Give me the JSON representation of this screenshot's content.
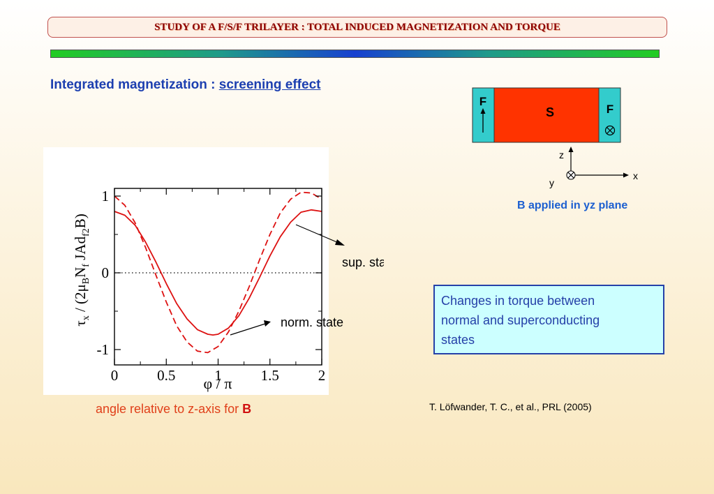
{
  "slide": {
    "title": "STUDY OF A F/S/F TRILAYER : TOTAL INDUCED MAGNETIZATION AND TORQUE",
    "heading_prefix": "Integrated magnetization : ",
    "heading_link": "screening effect",
    "caption_text": "angle relative to z-axis for ",
    "caption_bold": "B",
    "reference": "T. Löfwander, T. C., et al., PRL (2005)",
    "torque_box": [
      "Changes in torque between",
      "normal and superconducting",
      "states"
    ],
    "b_applied_label": "B applied in yz plane"
  },
  "trilayer": {
    "left_layer": "F",
    "middle_layer": "S",
    "right_layer": "F",
    "left_color": "#33cccc",
    "middle_color": "#ff3300",
    "right_color": "#33cccc"
  },
  "axes_diagram": {
    "z_label": "z",
    "x_label": "x",
    "y_label": "y"
  },
  "chart_data": {
    "type": "line",
    "xlabel": "φ / π",
    "ylabel_base": "τ",
    "ylabel_sub_x": "x",
    "ylabel_mid1": " / (2μ",
    "ylabel_sub_b": "B",
    "ylabel_mid2": "N",
    "ylabel_sub_f": "f",
    "ylabel_mid3": " JAd",
    "ylabel_sub_f2": "f2",
    "ylabel_end": "B)",
    "xlim": [
      0,
      2
    ],
    "ylim": [
      -1.2,
      1.1
    ],
    "xticks": [
      {
        "v": 0,
        "label": "0"
      },
      {
        "v": 0.5,
        "label": "0.5"
      },
      {
        "v": 1,
        "label": "1"
      },
      {
        "v": 1.5,
        "label": "1.5"
      },
      {
        "v": 2,
        "label": "2"
      }
    ],
    "yticks": [
      {
        "v": 1,
        "label": "1"
      },
      {
        "v": 0,
        "label": "0"
      },
      {
        "v": -1,
        "label": "-1"
      }
    ],
    "zero_line": "dotted",
    "series": [
      {
        "name": "sup. state",
        "style": "solid",
        "color": "#dd1111",
        "x": [
          0,
          0.1,
          0.2,
          0.3,
          0.4,
          0.5,
          0.6,
          0.7,
          0.8,
          0.9,
          0.95,
          1.0,
          1.1,
          1.2,
          1.3,
          1.4,
          1.5,
          1.6,
          1.7,
          1.8,
          1.9,
          2.0
        ],
        "y": [
          0.8,
          0.75,
          0.62,
          0.4,
          0.14,
          -0.14,
          -0.4,
          -0.6,
          -0.74,
          -0.8,
          -0.81,
          -0.8,
          -0.72,
          -0.56,
          -0.33,
          -0.06,
          0.22,
          0.47,
          0.66,
          0.79,
          0.82,
          0.8
        ]
      },
      {
        "name": "norm. state",
        "style": "dashed",
        "color": "#dd1111",
        "x": [
          0,
          0.1,
          0.2,
          0.3,
          0.4,
          0.5,
          0.6,
          0.7,
          0.8,
          0.9,
          1.0,
          1.1,
          1.2,
          1.3,
          1.4,
          1.5,
          1.6,
          1.7,
          1.8,
          1.9,
          2.0
        ],
        "y": [
          1.0,
          0.88,
          0.65,
          0.33,
          -0.03,
          -0.38,
          -0.69,
          -0.9,
          -1.02,
          -1.04,
          -0.96,
          -0.77,
          -0.5,
          -0.18,
          0.17,
          0.5,
          0.78,
          0.96,
          1.05,
          1.04,
          0.96
        ]
      }
    ]
  }
}
